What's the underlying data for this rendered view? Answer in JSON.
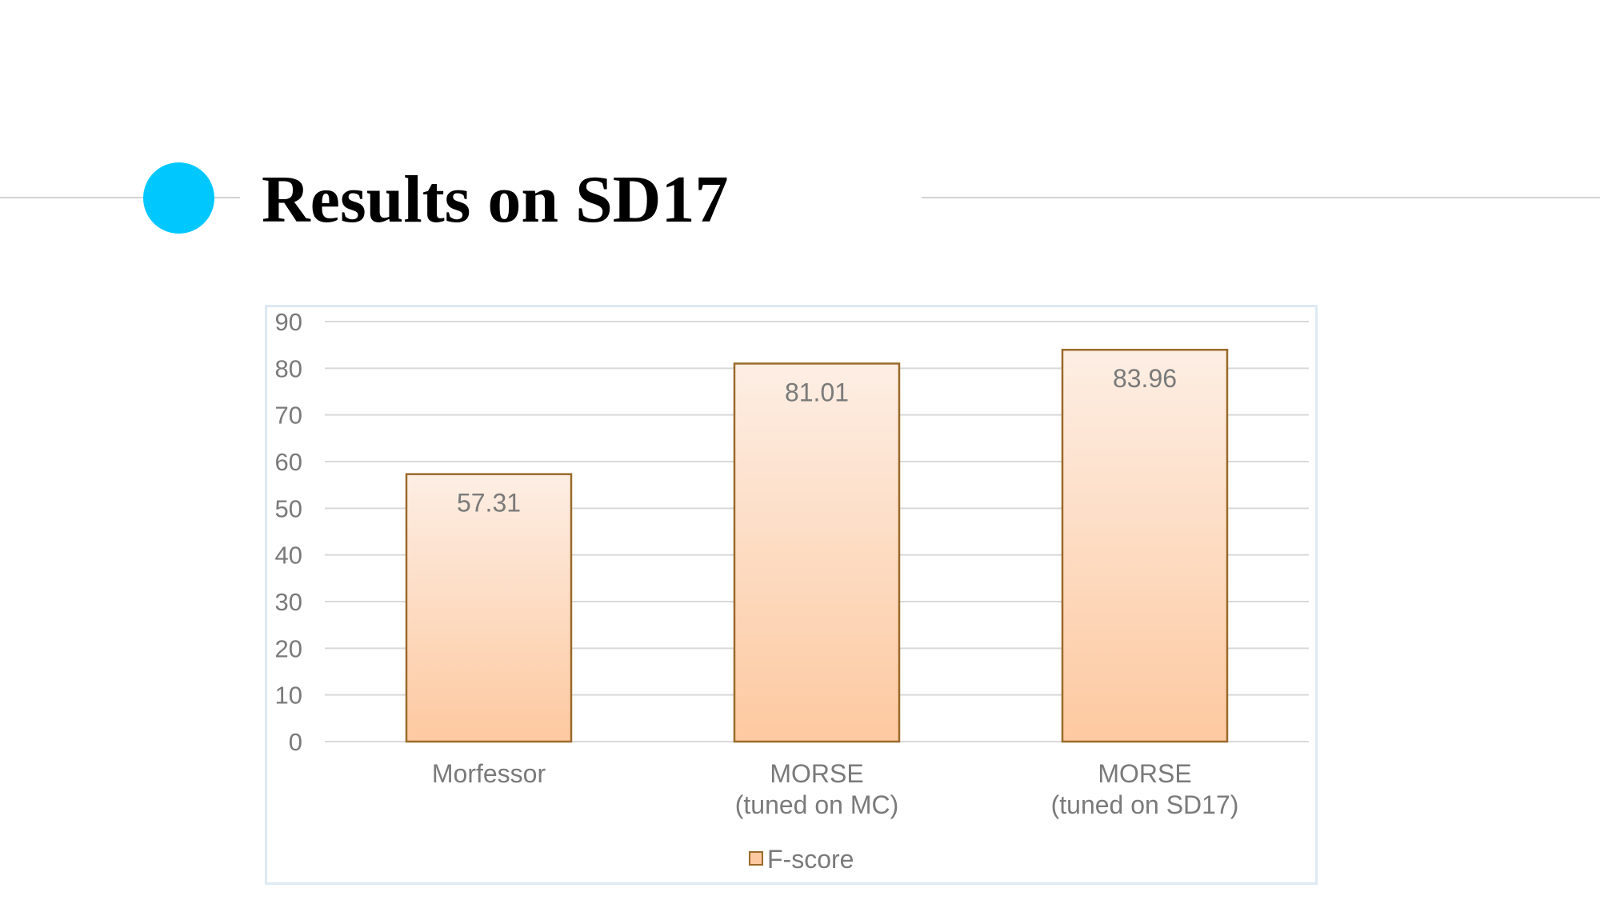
{
  "slide": {
    "title": "Results on SD17",
    "accent_color": "#00c8ff"
  },
  "chart_data": {
    "type": "bar",
    "categories": [
      [
        "Morfessor"
      ],
      [
        "MORSE",
        "(tuned on MC)"
      ],
      [
        "MORSE",
        "(tuned on SD17)"
      ]
    ],
    "series": [
      {
        "name": "F-score",
        "values": [
          57.31,
          81.01,
          83.96
        ],
        "data_labels": [
          "57.31",
          "81.01",
          "83.96"
        ]
      }
    ],
    "title": "",
    "xlabel": "",
    "ylabel": "",
    "ylim": [
      0,
      90
    ],
    "yticks": [
      0,
      10,
      20,
      30,
      40,
      50,
      60,
      70,
      80,
      90
    ],
    "grid": true,
    "legend_position": "bottom",
    "colors": {
      "bar_fill_top": "#fdeee4",
      "bar_fill_bottom": "#fdc9a0",
      "bar_stroke": "#9a6a2a",
      "gridline": "#d9d9d9",
      "text": "#7a7a7a"
    }
  }
}
